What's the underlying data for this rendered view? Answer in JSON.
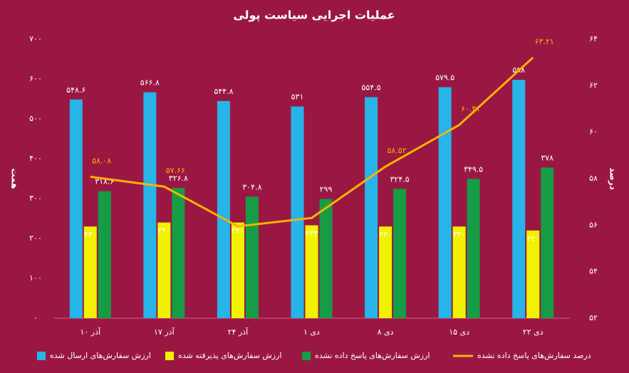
{
  "chart_data": {
    "type": "bar",
    "title": "عملیات اجرایی سیاست پولی",
    "ylabel": "همت",
    "y2label": "درصد",
    "categories": [
      "۱۰ آذر",
      "۱۷ آذر",
      "۲۴ آذر",
      "۱ دی",
      "۸ دی",
      "۱۵ دی",
      "۲۲ دی"
    ],
    "ylim": [
      0,
      700
    ],
    "yticks": [
      {
        "value": 0,
        "label": "۰"
      },
      {
        "value": 100,
        "label": "۱۰۰"
      },
      {
        "value": 200,
        "label": "۲۰۰"
      },
      {
        "value": 300,
        "label": "۳۰۰"
      },
      {
        "value": 400,
        "label": "۴۰۰"
      },
      {
        "value": 500,
        "label": "۵۰۰"
      },
      {
        "value": 600,
        "label": "۶۰۰"
      },
      {
        "value": 700,
        "label": "۷۰۰"
      }
    ],
    "y2lim": [
      52,
      64
    ],
    "y2ticks": [
      {
        "value": 52,
        "label": "۵۲"
      },
      {
        "value": 54,
        "label": "۵۴"
      },
      {
        "value": 56,
        "label": "۵۶"
      },
      {
        "value": 58,
        "label": "۵۸"
      },
      {
        "value": 60,
        "label": "۶۰"
      },
      {
        "value": 62,
        "label": "۶۲"
      },
      {
        "value": 64,
        "label": "۶۴"
      }
    ],
    "series": [
      {
        "name": "ارزش سفارش‌های ارسال شده",
        "type": "bar",
        "color": "#27b4e8",
        "values": [
          548.6,
          566.8,
          544.8,
          531,
          554.5,
          579.5,
          598
        ],
        "value_labels": [
          "۵۴۸.۶",
          "۵۶۶.۸",
          "۵۴۴.۸",
          "۵۳۱",
          "۵۵۴.۵",
          "۵۷۹.۵",
          "۵۹۸"
        ]
      },
      {
        "name": "ارزش سفارش‌های پذیرفته شده",
        "type": "bar",
        "color": "#f2f200",
        "values": [
          230,
          240,
          240,
          233,
          230,
          230,
          220
        ],
        "value_labels": [
          "۲۳۰",
          "۲۴۰",
          "۲۴۰",
          "۲۳۳",
          "۲۳۰",
          "۲۳۰",
          "۲۲۰"
        ]
      },
      {
        "name": "ارزش سفارش‌های پاسخ داده نشده",
        "type": "bar",
        "color": "#169c45",
        "values": [
          318.6,
          326.8,
          304.8,
          299,
          324.5,
          349.5,
          378
        ],
        "value_labels": [
          "۳۱۸.۶",
          "۳۲۶.۸",
          "۳۰۴.۸",
          "۲۹۹",
          "۳۲۴.۵",
          "۳۴۹.۵",
          "۳۷۸"
        ]
      },
      {
        "name": "درصد سفارش‌های پاسخ داده نشده",
        "type": "line",
        "axis": "y2",
        "color": "#f5b400",
        "values": [
          58.08,
          57.66,
          55.95,
          56.31,
          58.52,
          60.31,
          63.21
        ],
        "value_labels": [
          "۵۸.۰۸",
          "۵۷.۶۶",
          null,
          null,
          "۵۸.۵۲",
          "۶۰.۳۱",
          "۶۳.۲۱"
        ]
      }
    ]
  }
}
